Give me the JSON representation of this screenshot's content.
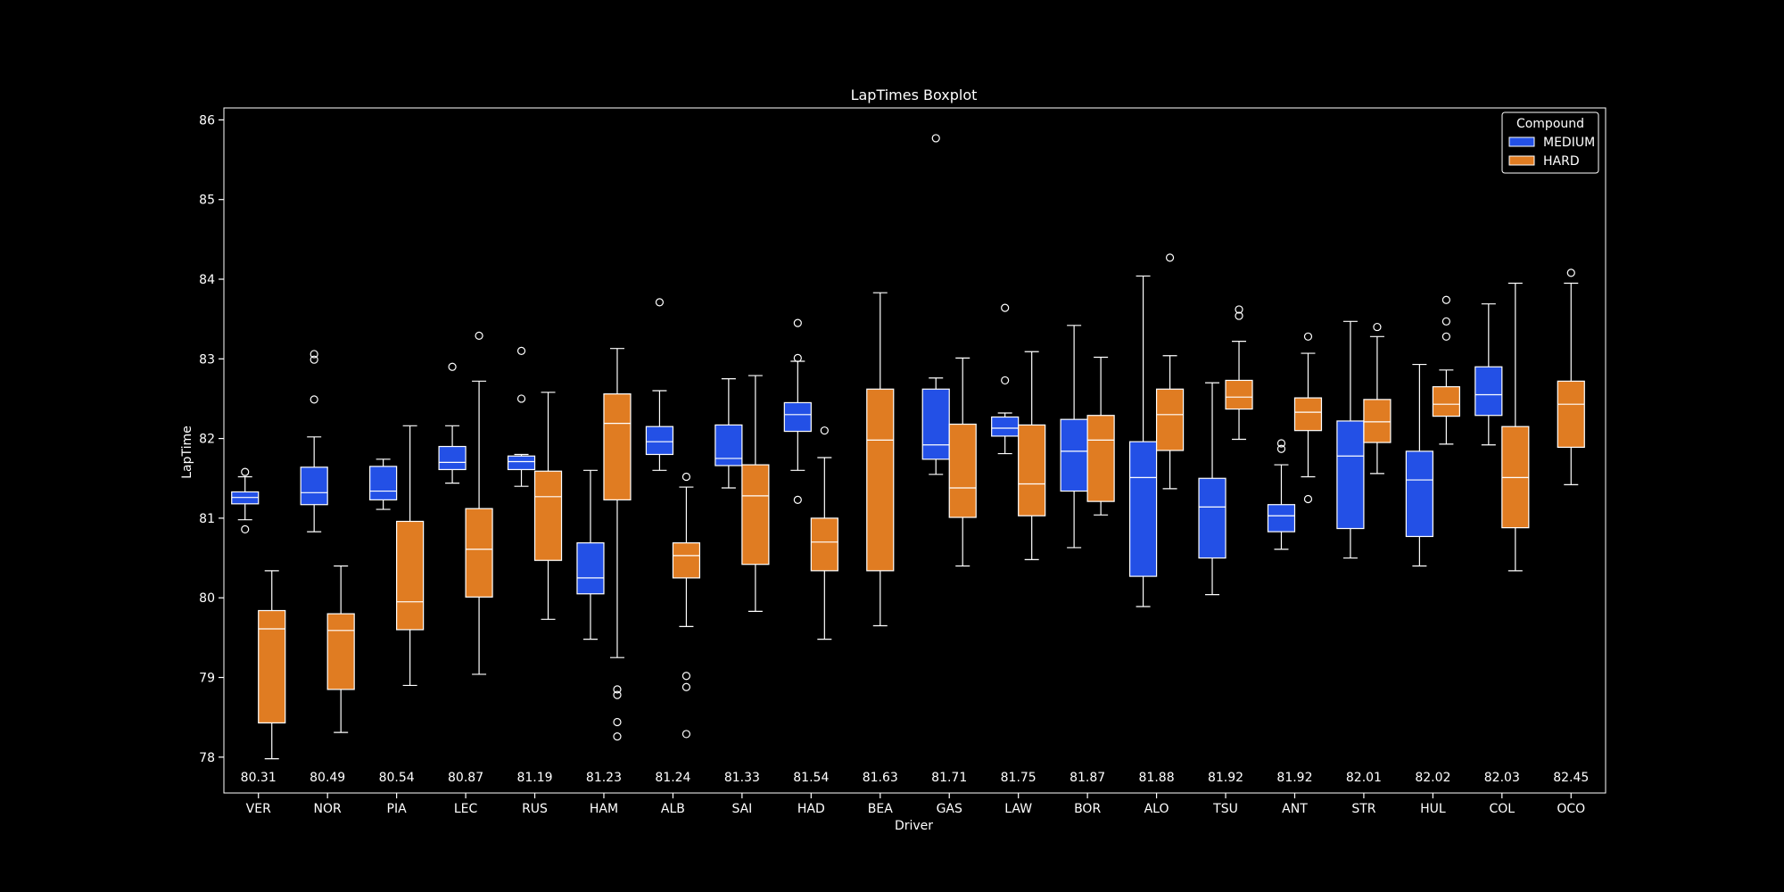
{
  "chart_data": {
    "type": "boxplot",
    "title": "LapTimes Boxplot",
    "xlabel": "Driver",
    "ylabel": "LapTime",
    "ylim": [
      77.55,
      86.15
    ],
    "yticks": [
      78,
      79,
      80,
      81,
      82,
      83,
      84,
      85,
      86
    ],
    "grid": false,
    "legend": {
      "title": "Compound",
      "placement": "top-right",
      "entries": [
        {
          "name": "MEDIUM",
          "color": "#2350e6"
        },
        {
          "name": "HARD",
          "color": "#e07c22"
        }
      ]
    },
    "colors": {
      "background": "#000000",
      "medium": "#2350e6",
      "hard": "#e07c22",
      "lines": "#ffffff"
    },
    "drivers": [
      {
        "label": "VER",
        "annotation": "80.31",
        "medium": {
          "whislo": 80.98,
          "q1": 81.18,
          "med": 81.26,
          "q3": 81.33,
          "whishi": 81.52,
          "fliers": [
            81.58,
            80.86
          ]
        },
        "hard": {
          "whislo": 77.98,
          "q1": 78.43,
          "med": 79.61,
          "q3": 79.84,
          "whishi": 80.34,
          "fliers": []
        }
      },
      {
        "label": "NOR",
        "annotation": "80.49",
        "medium": {
          "whislo": 80.83,
          "q1": 81.17,
          "med": 81.32,
          "q3": 81.64,
          "whishi": 82.02,
          "fliers": [
            83.06,
            82.99,
            82.49
          ]
        },
        "hard": {
          "whislo": 78.31,
          "q1": 78.85,
          "med": 79.59,
          "q3": 79.8,
          "whishi": 80.4,
          "fliers": []
        }
      },
      {
        "label": "PIA",
        "annotation": "80.54",
        "medium": {
          "whislo": 81.11,
          "q1": 81.23,
          "med": 81.34,
          "q3": 81.65,
          "whishi": 81.74,
          "fliers": []
        },
        "hard": {
          "whislo": 78.9,
          "q1": 79.6,
          "med": 79.95,
          "q3": 80.96,
          "whishi": 82.16,
          "fliers": []
        }
      },
      {
        "label": "LEC",
        "annotation": "80.87",
        "medium": {
          "whislo": 81.44,
          "q1": 81.61,
          "med": 81.7,
          "q3": 81.9,
          "whishi": 82.16,
          "fliers": [
            82.9
          ]
        },
        "hard": {
          "whislo": 79.04,
          "q1": 80.01,
          "med": 80.61,
          "q3": 81.12,
          "whishi": 82.72,
          "fliers": [
            83.29
          ]
        }
      },
      {
        "label": "RUS",
        "annotation": "81.19",
        "medium": {
          "whislo": 81.4,
          "q1": 81.61,
          "med": 81.71,
          "q3": 81.78,
          "whishi": 81.8,
          "fliers": [
            83.1,
            82.5
          ]
        },
        "hard": {
          "whislo": 79.73,
          "q1": 80.47,
          "med": 81.27,
          "q3": 81.59,
          "whishi": 82.58,
          "fliers": []
        }
      },
      {
        "label": "HAM",
        "annotation": "81.23",
        "medium": {
          "whislo": 79.48,
          "q1": 80.05,
          "med": 80.25,
          "q3": 80.69,
          "whishi": 81.6,
          "fliers": []
        },
        "hard": {
          "whislo": 79.25,
          "q1": 81.23,
          "med": 82.19,
          "q3": 82.56,
          "whishi": 83.13,
          "fliers": [
            78.85,
            78.78,
            78.44,
            78.26
          ]
        }
      },
      {
        "label": "ALB",
        "annotation": "81.24",
        "medium": {
          "whislo": 81.6,
          "q1": 81.8,
          "med": 81.96,
          "q3": 82.15,
          "whishi": 82.6,
          "fliers": [
            83.71
          ]
        },
        "hard": {
          "whislo": 79.64,
          "q1": 80.25,
          "med": 80.53,
          "q3": 80.69,
          "whishi": 81.39,
          "fliers": [
            81.52,
            79.02,
            78.88,
            78.29
          ]
        }
      },
      {
        "label": "SAI",
        "annotation": "81.33",
        "medium": {
          "whislo": 81.38,
          "q1": 81.66,
          "med": 81.75,
          "q3": 82.17,
          "whishi": 82.75,
          "fliers": []
        },
        "hard": {
          "whislo": 79.83,
          "q1": 80.42,
          "med": 81.28,
          "q3": 81.67,
          "whishi": 82.79,
          "fliers": []
        }
      },
      {
        "label": "HAD",
        "annotation": "81.54",
        "medium": {
          "whislo": 81.6,
          "q1": 82.09,
          "med": 82.3,
          "q3": 82.45,
          "whishi": 82.97,
          "fliers": [
            83.45,
            83.01,
            81.23
          ]
        },
        "hard": {
          "whislo": 79.48,
          "q1": 80.34,
          "med": 80.7,
          "q3": 81.0,
          "whishi": 81.76,
          "fliers": [
            82.1
          ]
        }
      },
      {
        "label": "BEA",
        "annotation": "81.63",
        "medium": null,
        "hard": {
          "whislo": 79.65,
          "q1": 80.34,
          "med": 81.98,
          "q3": 82.62,
          "whishi": 83.83,
          "fliers": []
        }
      },
      {
        "label": "GAS",
        "annotation": "81.71",
        "medium": {
          "whislo": 81.55,
          "q1": 81.74,
          "med": 81.92,
          "q3": 82.62,
          "whishi": 82.76,
          "fliers": [
            85.77
          ]
        },
        "hard": {
          "whislo": 80.4,
          "q1": 81.01,
          "med": 81.38,
          "q3": 82.18,
          "whishi": 83.01,
          "fliers": []
        }
      },
      {
        "label": "LAW",
        "annotation": "81.75",
        "medium": {
          "whislo": 81.81,
          "q1": 82.03,
          "med": 82.13,
          "q3": 82.27,
          "whishi": 82.32,
          "fliers": [
            83.64,
            82.73
          ]
        },
        "hard": {
          "whislo": 80.48,
          "q1": 81.03,
          "med": 81.43,
          "q3": 82.17,
          "whishi": 83.09,
          "fliers": []
        }
      },
      {
        "label": "BOR",
        "annotation": "81.87",
        "medium": {
          "whislo": 80.63,
          "q1": 81.34,
          "med": 81.84,
          "q3": 82.24,
          "whishi": 83.42,
          "fliers": []
        },
        "hard": {
          "whislo": 81.04,
          "q1": 81.21,
          "med": 81.98,
          "q3": 82.29,
          "whishi": 83.02,
          "fliers": []
        }
      },
      {
        "label": "ALO",
        "annotation": "81.88",
        "medium": {
          "whislo": 79.89,
          "q1": 80.27,
          "med": 81.51,
          "q3": 81.96,
          "whishi": 84.04,
          "fliers": []
        },
        "hard": {
          "whislo": 81.37,
          "q1": 81.85,
          "med": 82.3,
          "q3": 82.62,
          "whishi": 83.04,
          "fliers": [
            84.27
          ]
        }
      },
      {
        "label": "TSU",
        "annotation": "81.92",
        "medium": {
          "whislo": 80.04,
          "q1": 80.5,
          "med": 81.14,
          "q3": 81.5,
          "whishi": 82.7,
          "fliers": []
        },
        "hard": {
          "whislo": 81.99,
          "q1": 82.37,
          "med": 82.52,
          "q3": 82.73,
          "whishi": 83.22,
          "fliers": [
            83.62,
            83.54
          ]
        }
      },
      {
        "label": "ANT",
        "annotation": "81.92",
        "medium": {
          "whislo": 80.61,
          "q1": 80.83,
          "med": 81.03,
          "q3": 81.17,
          "whishi": 81.67,
          "fliers": [
            81.94,
            81.87
          ]
        },
        "hard": {
          "whislo": 81.52,
          "q1": 82.1,
          "med": 82.33,
          "q3": 82.51,
          "whishi": 83.07,
          "fliers": [
            83.28,
            81.24
          ]
        }
      },
      {
        "label": "STR",
        "annotation": "82.01",
        "medium": {
          "whislo": 80.5,
          "q1": 80.87,
          "med": 81.78,
          "q3": 82.22,
          "whishi": 83.47,
          "fliers": []
        },
        "hard": {
          "whislo": 81.56,
          "q1": 81.95,
          "med": 82.21,
          "q3": 82.49,
          "whishi": 83.28,
          "fliers": [
            83.4
          ]
        }
      },
      {
        "label": "HUL",
        "annotation": "82.02",
        "medium": {
          "whislo": 80.4,
          "q1": 80.77,
          "med": 81.48,
          "q3": 81.84,
          "whishi": 82.93,
          "fliers": []
        },
        "hard": {
          "whislo": 81.93,
          "q1": 82.28,
          "med": 82.43,
          "q3": 82.65,
          "whishi": 82.86,
          "fliers": [
            83.74,
            83.47,
            83.28
          ]
        }
      },
      {
        "label": "COL",
        "annotation": "82.03",
        "medium": {
          "whislo": 81.92,
          "q1": 82.29,
          "med": 82.55,
          "q3": 82.9,
          "whishi": 83.69,
          "fliers": []
        },
        "hard": {
          "whislo": 80.34,
          "q1": 80.88,
          "med": 81.51,
          "q3": 82.15,
          "whishi": 83.95,
          "fliers": []
        }
      },
      {
        "label": "OCO",
        "annotation": "82.45",
        "medium": null,
        "hard": {
          "whislo": 81.42,
          "q1": 81.89,
          "med": 82.43,
          "q3": 82.72,
          "whishi": 83.95,
          "fliers": [
            84.08
          ]
        }
      }
    ]
  }
}
